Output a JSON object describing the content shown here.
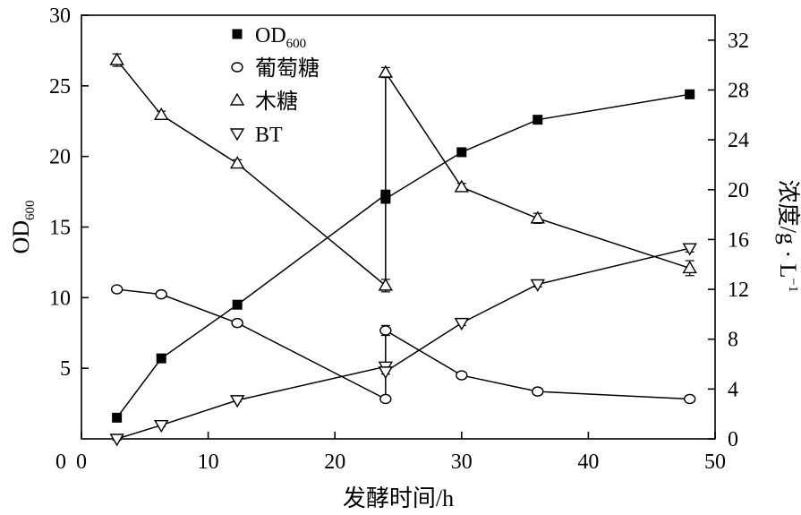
{
  "chart_data": {
    "type": "line",
    "xlabel": "发酵时间/h",
    "ylabel_left": {
      "main": "OD",
      "sub": "600"
    },
    "ylabel_right": {
      "main": "浓度/g · L",
      "sup": "−1"
    },
    "xlim": [
      0,
      50
    ],
    "ylim_left": [
      0,
      30
    ],
    "ylim_right": [
      0,
      34
    ],
    "x_ticks": [
      0,
      10,
      20,
      30,
      40,
      50
    ],
    "y_left_ticks": [
      5,
      10,
      15,
      20,
      25,
      30
    ],
    "y_right_ticks": [
      0,
      4,
      8,
      12,
      16,
      20,
      24,
      28,
      32
    ],
    "legend_position": "top-center",
    "series": [
      {
        "name": "OD",
        "name_sub": "600",
        "axis": "left",
        "marker": "filled-square",
        "points": [
          [
            2.8,
            1.5
          ],
          [
            6.3,
            5.7
          ],
          [
            12.3,
            9.5
          ],
          [
            24,
            17.3
          ],
          [
            24,
            17.0
          ],
          [
            30,
            20.3
          ],
          [
            36,
            22.6
          ],
          [
            48,
            24.4
          ]
        ],
        "errors": [
          0.2,
          0.2,
          0.2,
          0.3,
          0.3,
          0.2,
          0.2,
          0.3
        ]
      },
      {
        "name": "葡萄糖",
        "axis": "right",
        "marker": "circle",
        "points": [
          [
            2.8,
            12.0
          ],
          [
            6.3,
            11.6
          ],
          [
            12.3,
            9.3
          ],
          [
            24,
            3.2
          ],
          [
            24,
            8.7
          ],
          [
            30,
            5.1
          ],
          [
            36,
            3.8
          ],
          [
            48,
            3.2
          ]
        ],
        "errors": [
          0.2,
          0.2,
          0.2,
          0.2,
          0.4,
          0.2,
          0.2,
          0.2
        ]
      },
      {
        "name": "木糖",
        "axis": "right",
        "marker": "triangle-up",
        "points": [
          [
            2.8,
            30.4
          ],
          [
            6.3,
            26.0
          ],
          [
            12.3,
            22.1
          ],
          [
            24,
            12.3
          ],
          [
            24,
            29.4
          ],
          [
            30,
            20.2
          ],
          [
            36,
            17.7
          ],
          [
            48,
            13.7
          ]
        ],
        "errors": [
          0.5,
          0.3,
          0.3,
          0.5,
          0.4,
          0.3,
          0.4,
          0.6
        ]
      },
      {
        "name": "BT",
        "axis": "right",
        "marker": "triangle-down",
        "points": [
          [
            2.8,
            0.0
          ],
          [
            6.3,
            1.1
          ],
          [
            12.3,
            3.1
          ],
          [
            24,
            5.8
          ],
          [
            24,
            5.4
          ],
          [
            30,
            9.3
          ],
          [
            36,
            12.4
          ],
          [
            48,
            15.3
          ]
        ],
        "errors": [
          0.1,
          0.1,
          0.1,
          0.2,
          0.2,
          0.2,
          0.2,
          0.3
        ]
      }
    ]
  }
}
